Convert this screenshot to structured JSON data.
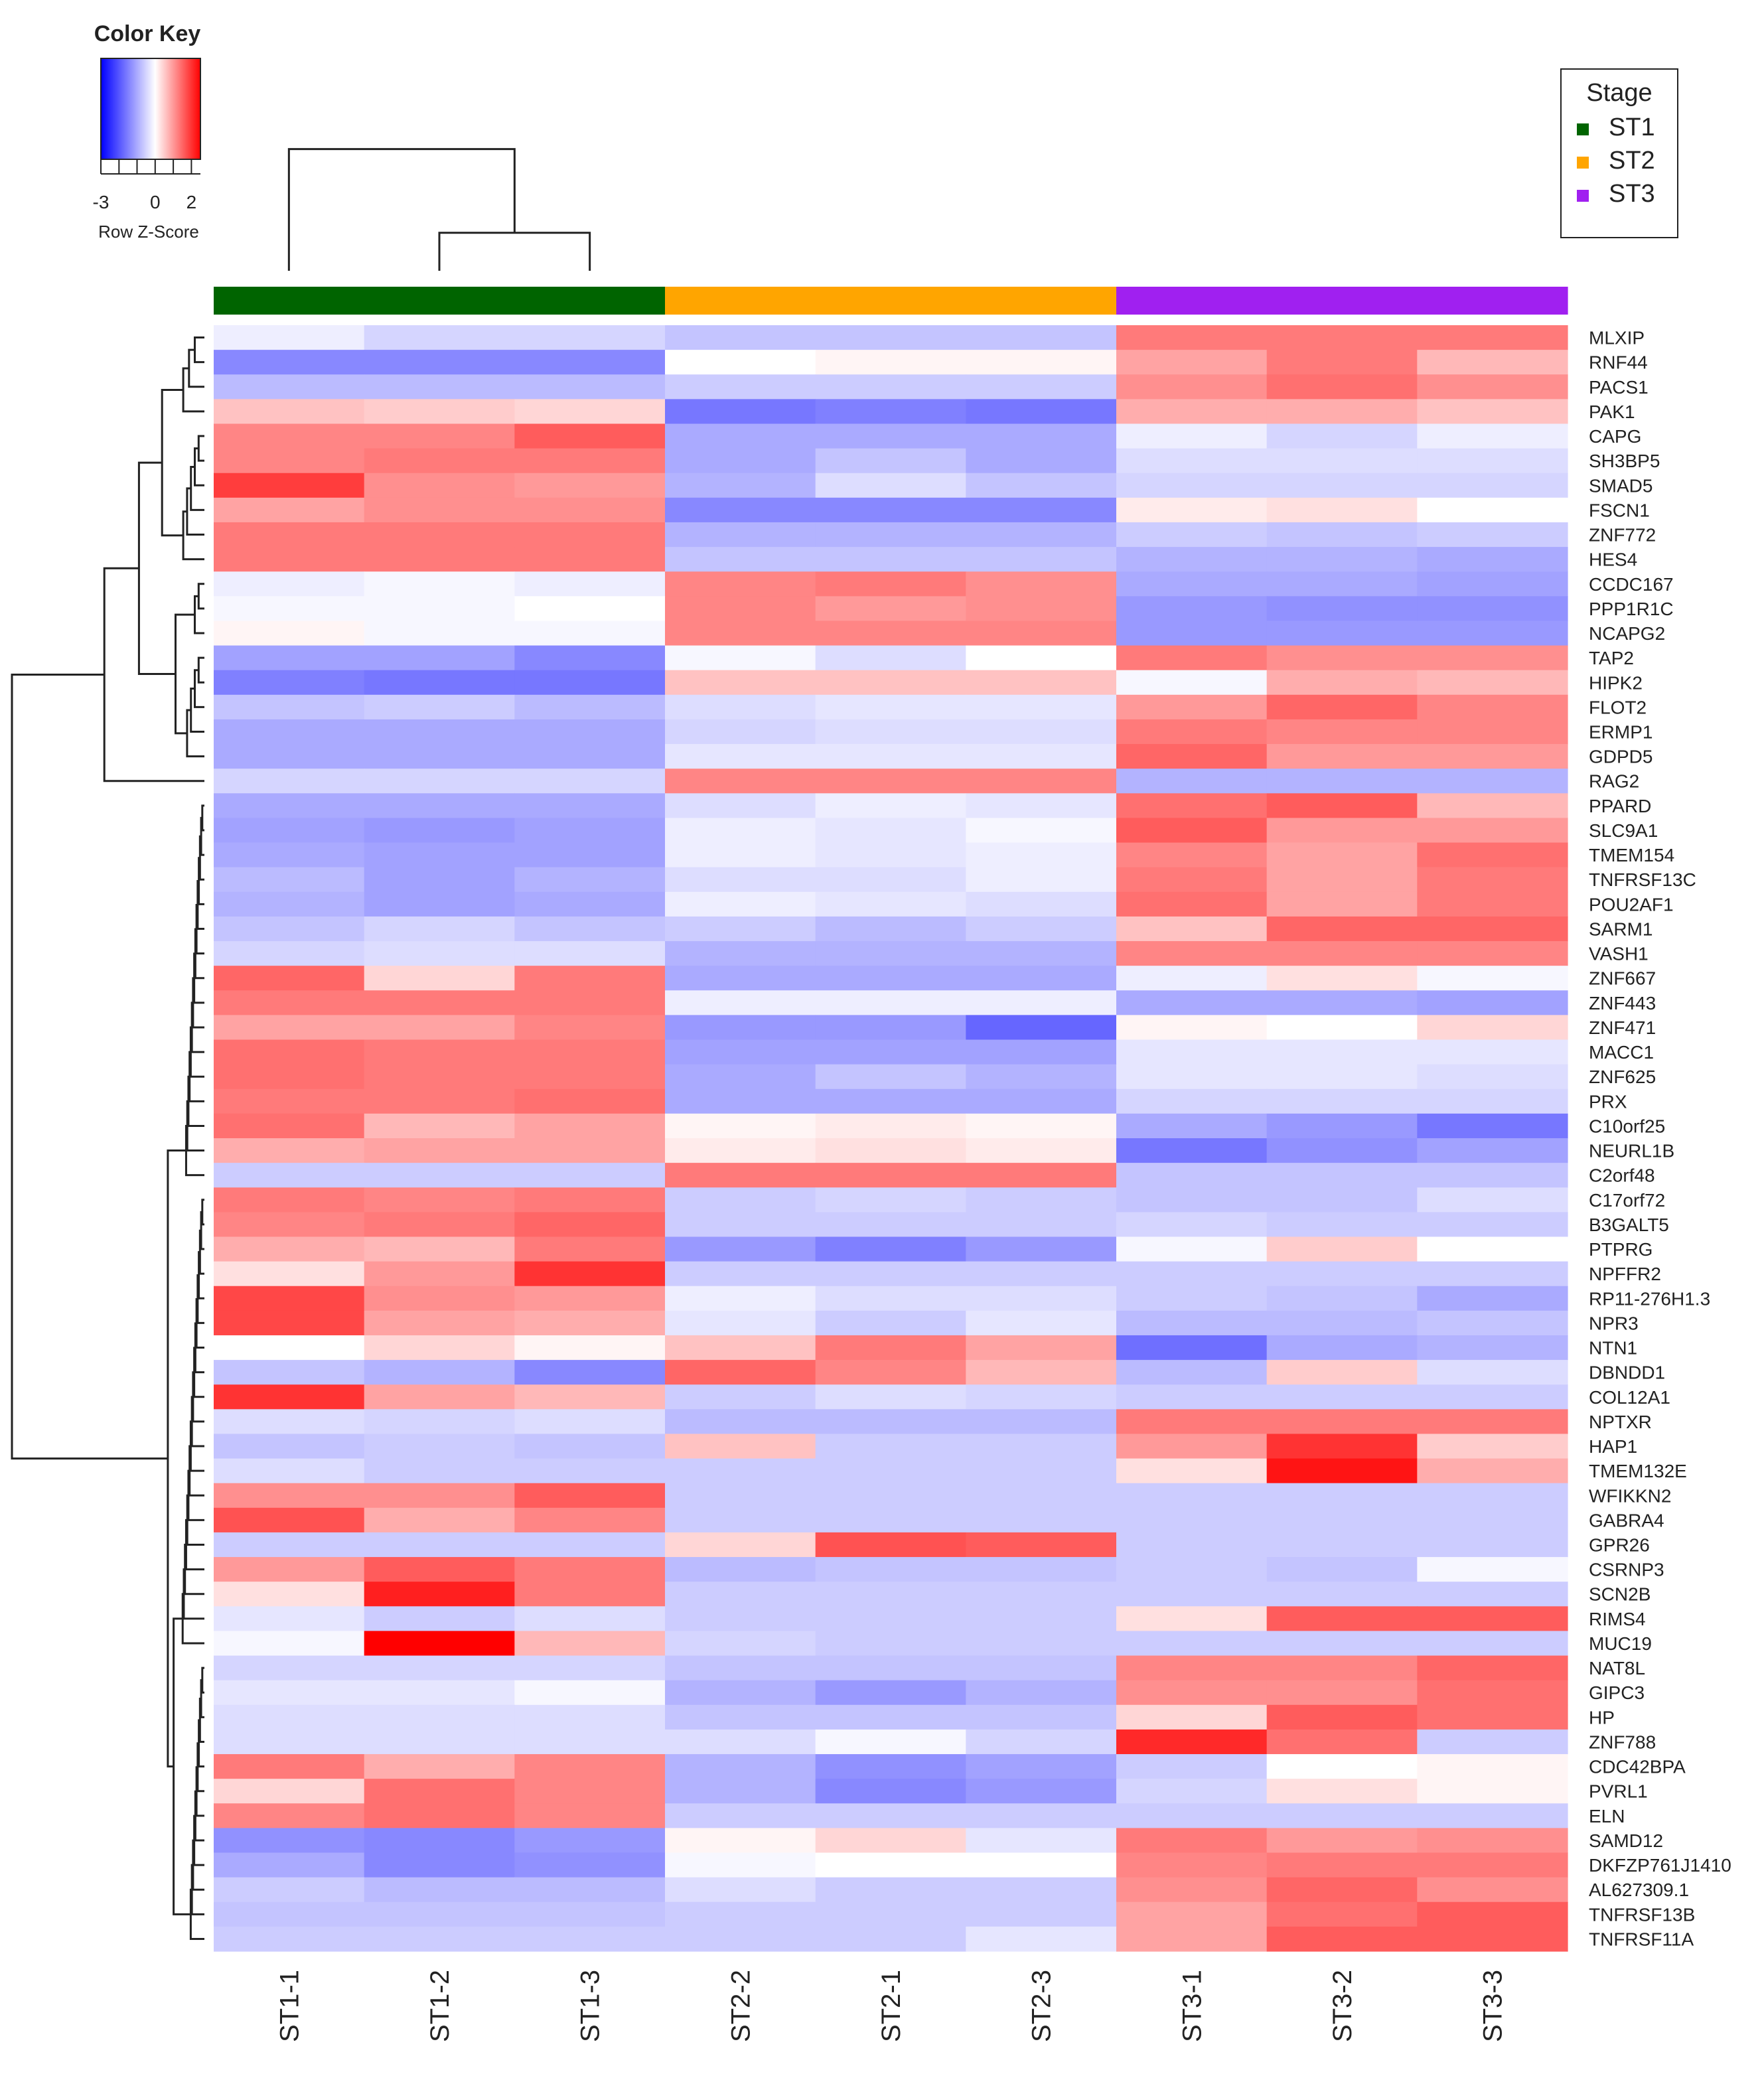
{
  "chart_data": {
    "type": "heatmap",
    "title": "",
    "color_key": {
      "title": "Color Key",
      "scale_label": "Row Z-Score",
      "ticks": [
        -3,
        0,
        2
      ],
      "tick_labels": [
        "-3",
        "0",
        "2"
      ],
      "range": [
        -3,
        2.5
      ],
      "low_color": "#0000ff",
      "mid_color": "#ffffff",
      "high_color": "#ff0000"
    },
    "legend": {
      "title": "Stage",
      "position": "top-right",
      "items": [
        {
          "label": "ST1",
          "color": "#006400"
        },
        {
          "label": "ST2",
          "color": "#ffa500"
        },
        {
          "label": "ST3",
          "color": "#a020f0"
        }
      ]
    },
    "columns": [
      "ST1-1",
      "ST1-2",
      "ST1-3",
      "ST2-2",
      "ST2-1",
      "ST2-3",
      "ST3-1",
      "ST3-2",
      "ST3-3"
    ],
    "column_stage": [
      "ST1",
      "ST1",
      "ST1",
      "ST2",
      "ST2",
      "ST2",
      "ST3",
      "ST3",
      "ST3"
    ],
    "rows": [
      "MLXIP",
      "RNF44",
      "PACS1",
      "PAK1",
      "CAPG",
      "SH3BP5",
      "SMAD5",
      "FSCN1",
      "ZNF772",
      "HES4",
      "CCDC167",
      "PPP1R1C",
      "NCAPG2",
      "TAP2",
      "HIPK2",
      "FLOT2",
      "ERMP1",
      "GDPD5",
      "RAG2",
      "PPARD",
      "SLC9A1",
      "TMEM154",
      "TNFRSF13C",
      "POU2AF1",
      "SARM1",
      "VASH1",
      "ZNF667",
      "ZNF443",
      "ZNF471",
      "MACC1",
      "ZNF625",
      "PRX",
      "C10orf25",
      "NEURL1B",
      "C2orf48",
      "C17orf72",
      "B3GALT5",
      "PTPRG",
      "NPFFR2",
      "RP11-276H1.3",
      "NPR3",
      "NTN1",
      "DBNDD1",
      "COL12A1",
      "NPTXR",
      "HAP1",
      "TMEM132E",
      "WFIKKN2",
      "GABRA4",
      "GPR26",
      "CSRNP3",
      "SCN2B",
      "RIMS4",
      "MUC19",
      "NAT8L",
      "GIPC3",
      "HP",
      "ZNF788",
      "CDC42BPA",
      "PVRL1",
      "ELN",
      "SAMD12",
      "DKFZP761J1410",
      "AL627309.1",
      "TNFRSF13B",
      "TNFRSF11A"
    ],
    "values": [
      [
        -0.2,
        -0.5,
        -0.5,
        -0.7,
        -0.7,
        -0.7,
        1.3,
        1.3,
        1.3
      ],
      [
        -1.4,
        -1.4,
        -1.4,
        0.0,
        0.1,
        0.1,
        0.9,
        1.3,
        0.7
      ],
      [
        -0.8,
        -0.8,
        -0.8,
        -0.6,
        -0.6,
        -0.6,
        1.1,
        1.4,
        1.1
      ],
      [
        0.6,
        0.5,
        0.4,
        -1.6,
        -1.5,
        -1.6,
        0.8,
        0.8,
        0.6
      ],
      [
        1.2,
        1.2,
        1.6,
        -1.0,
        -1.0,
        -1.0,
        -0.2,
        -0.5,
        -0.2
      ],
      [
        1.2,
        1.3,
        1.3,
        -1.0,
        -0.7,
        -1.0,
        -0.4,
        -0.4,
        -0.4
      ],
      [
        1.9,
        1.1,
        1.0,
        -0.9,
        -0.4,
        -0.7,
        -0.5,
        -0.5,
        -0.5
      ],
      [
        0.9,
        1.1,
        1.1,
        -1.4,
        -1.4,
        -1.4,
        0.2,
        0.3,
        0.0
      ],
      [
        1.3,
        1.3,
        1.3,
        -0.9,
        -0.9,
        -0.9,
        -0.6,
        -0.7,
        -0.6
      ],
      [
        1.3,
        1.3,
        1.3,
        -0.7,
        -0.7,
        -0.7,
        -0.9,
        -0.9,
        -1.0
      ],
      [
        -0.2,
        -0.1,
        -0.2,
        1.2,
        1.3,
        1.1,
        -1.0,
        -1.0,
        -1.1
      ],
      [
        -0.1,
        -0.1,
        0.0,
        1.2,
        1.0,
        1.1,
        -1.2,
        -1.3,
        -1.3
      ],
      [
        0.1,
        -0.1,
        -0.1,
        1.2,
        1.2,
        1.2,
        -1.2,
        -1.2,
        -1.2
      ],
      [
        -1.1,
        -1.1,
        -1.4,
        -0.1,
        -0.4,
        0.0,
        1.3,
        1.1,
        1.1
      ],
      [
        -1.5,
        -1.6,
        -1.6,
        0.6,
        0.6,
        0.6,
        -0.1,
        0.8,
        0.7
      ],
      [
        -0.7,
        -0.6,
        -0.8,
        -0.4,
        -0.3,
        -0.3,
        1.0,
        1.5,
        1.2
      ],
      [
        -1.0,
        -1.0,
        -1.0,
        -0.5,
        -0.4,
        -0.4,
        1.3,
        1.2,
        1.2
      ],
      [
        -1.0,
        -1.0,
        -1.0,
        -0.3,
        -0.3,
        -0.3,
        1.5,
        1.0,
        1.0
      ],
      [
        -0.5,
        -0.5,
        -0.5,
        1.2,
        1.2,
        1.2,
        -0.9,
        -0.9,
        -0.9
      ],
      [
        -1.0,
        -1.0,
        -1.0,
        -0.4,
        -0.2,
        -0.3,
        1.4,
        1.6,
        0.7
      ],
      [
        -1.1,
        -1.2,
        -1.1,
        -0.2,
        -0.3,
        -0.1,
        1.6,
        1.0,
        1.0
      ],
      [
        -1.0,
        -1.1,
        -1.1,
        -0.2,
        -0.3,
        -0.2,
        1.2,
        0.9,
        1.4
      ],
      [
        -0.8,
        -1.1,
        -0.9,
        -0.4,
        -0.4,
        -0.2,
        1.3,
        0.9,
        1.3
      ],
      [
        -0.9,
        -1.1,
        -1.0,
        -0.2,
        -0.3,
        -0.4,
        1.4,
        0.9,
        1.3
      ],
      [
        -0.7,
        -0.5,
        -0.7,
        -0.6,
        -0.8,
        -0.6,
        0.6,
        1.5,
        1.5
      ],
      [
        -0.5,
        -0.4,
        -0.4,
        -0.9,
        -0.9,
        -0.9,
        1.2,
        1.2,
        1.2
      ],
      [
        1.5,
        0.4,
        1.3,
        -1.0,
        -1.0,
        -1.0,
        -0.2,
        0.3,
        -0.1
      ],
      [
        1.3,
        1.3,
        1.3,
        -0.2,
        -0.2,
        -0.2,
        -1.0,
        -1.0,
        -1.1
      ],
      [
        0.9,
        0.9,
        1.2,
        -1.2,
        -1.2,
        -1.8,
        0.1,
        0.0,
        0.4
      ],
      [
        1.4,
        1.3,
        1.3,
        -1.1,
        -1.1,
        -1.1,
        -0.3,
        -0.3,
        -0.3
      ],
      [
        1.4,
        1.3,
        1.3,
        -1.0,
        -0.7,
        -0.9,
        -0.3,
        -0.3,
        -0.4
      ],
      [
        1.3,
        1.3,
        1.4,
        -1.0,
        -1.0,
        -1.0,
        -0.5,
        -0.5,
        -0.5
      ],
      [
        1.4,
        0.7,
        0.9,
        0.1,
        0.2,
        0.1,
        -1.0,
        -1.2,
        -1.6
      ],
      [
        0.8,
        0.9,
        0.9,
        0.2,
        0.3,
        0.2,
        -1.6,
        -1.3,
        -1.1
      ],
      [
        -0.6,
        -0.6,
        -0.6,
        1.3,
        1.3,
        1.3,
        -0.7,
        -0.7,
        -0.7
      ],
      [
        1.3,
        1.2,
        1.3,
        -0.6,
        -0.5,
        -0.6,
        -0.7,
        -0.7,
        -0.4
      ],
      [
        1.2,
        1.3,
        1.5,
        -0.6,
        -0.6,
        -0.6,
        -0.5,
        -0.6,
        -0.6
      ],
      [
        0.8,
        0.7,
        1.3,
        -1.2,
        -1.5,
        -1.2,
        -0.1,
        0.5,
        0.0
      ],
      [
        0.3,
        1.0,
        2.0,
        -0.6,
        -0.6,
        -0.6,
        -0.6,
        -0.6,
        -0.6
      ],
      [
        1.8,
        1.1,
        1.0,
        -0.2,
        -0.4,
        -0.4,
        -0.6,
        -0.7,
        -1.0
      ],
      [
        1.8,
        0.9,
        0.8,
        -0.3,
        -0.6,
        -0.3,
        -0.8,
        -0.8,
        -0.7
      ],
      [
        0.0,
        0.4,
        0.1,
        0.6,
        1.3,
        0.9,
        -1.7,
        -1.0,
        -0.9
      ],
      [
        -0.7,
        -0.9,
        -1.4,
        1.5,
        1.2,
        0.7,
        -0.8,
        0.5,
        -0.4
      ],
      [
        2.0,
        0.9,
        0.7,
        -0.6,
        -0.4,
        -0.5,
        -0.6,
        -0.6,
        -0.6
      ],
      [
        -0.4,
        -0.5,
        -0.4,
        -0.8,
        -0.8,
        -0.8,
        1.3,
        1.3,
        1.3
      ],
      [
        -0.7,
        -0.6,
        -0.7,
        0.6,
        -0.6,
        -0.6,
        1.0,
        2.0,
        0.5
      ],
      [
        -0.4,
        -0.6,
        -0.6,
        -0.6,
        -0.6,
        -0.6,
        0.3,
        2.3,
        0.8
      ],
      [
        1.1,
        1.1,
        1.6,
        -0.6,
        -0.6,
        -0.6,
        -0.6,
        -0.6,
        -0.6
      ],
      [
        1.7,
        0.8,
        1.2,
        -0.6,
        -0.6,
        -0.6,
        -0.6,
        -0.6,
        -0.6
      ],
      [
        -0.6,
        -0.6,
        -0.6,
        0.4,
        1.7,
        1.6,
        -0.6,
        -0.6,
        -0.6
      ],
      [
        1.0,
        1.6,
        1.3,
        -0.8,
        -0.7,
        -0.7,
        -0.6,
        -0.7,
        -0.1
      ],
      [
        0.3,
        2.2,
        1.3,
        -0.6,
        -0.6,
        -0.6,
        -0.6,
        -0.6,
        -0.6
      ],
      [
        -0.3,
        -0.6,
        -0.4,
        -0.6,
        -0.6,
        -0.6,
        0.3,
        1.6,
        1.6
      ],
      [
        -0.1,
        2.5,
        0.7,
        -0.5,
        -0.6,
        -0.6,
        -0.6,
        -0.6,
        -0.6
      ],
      [
        -0.5,
        -0.5,
        -0.5,
        -0.7,
        -0.7,
        -0.7,
        1.2,
        1.2,
        1.5
      ],
      [
        -0.3,
        -0.3,
        -0.1,
        -0.9,
        -1.2,
        -0.9,
        1.1,
        1.1,
        1.4
      ],
      [
        -0.4,
        -0.4,
        -0.4,
        -0.7,
        -0.7,
        -0.7,
        0.4,
        1.6,
        1.4
      ],
      [
        -0.4,
        -0.4,
        -0.4,
        -0.4,
        -0.1,
        -0.5,
        2.1,
        1.4,
        -0.6
      ],
      [
        1.3,
        0.8,
        1.2,
        -0.9,
        -1.3,
        -1.1,
        -0.6,
        0.0,
        0.1
      ],
      [
        0.4,
        1.4,
        1.2,
        -0.9,
        -1.4,
        -1.2,
        -0.5,
        0.3,
        0.1
      ],
      [
        1.2,
        1.4,
        1.2,
        -0.6,
        -0.6,
        -0.6,
        -0.6,
        -0.6,
        -0.6
      ],
      [
        -1.3,
        -1.4,
        -1.2,
        0.1,
        0.4,
        -0.3,
        1.3,
        1.0,
        1.1
      ],
      [
        -1.0,
        -1.4,
        -1.3,
        -0.1,
        0.0,
        0.0,
        1.2,
        1.3,
        1.3
      ],
      [
        -0.6,
        -0.8,
        -0.8,
        -0.4,
        -0.6,
        -0.6,
        1.1,
        1.5,
        1.1
      ],
      [
        -0.7,
        -0.7,
        -0.7,
        -0.6,
        -0.6,
        -0.6,
        0.9,
        1.4,
        1.6
      ],
      [
        -0.6,
        -0.6,
        -0.6,
        -0.6,
        -0.6,
        -0.3,
        0.9,
        1.6,
        1.6
      ]
    ]
  }
}
